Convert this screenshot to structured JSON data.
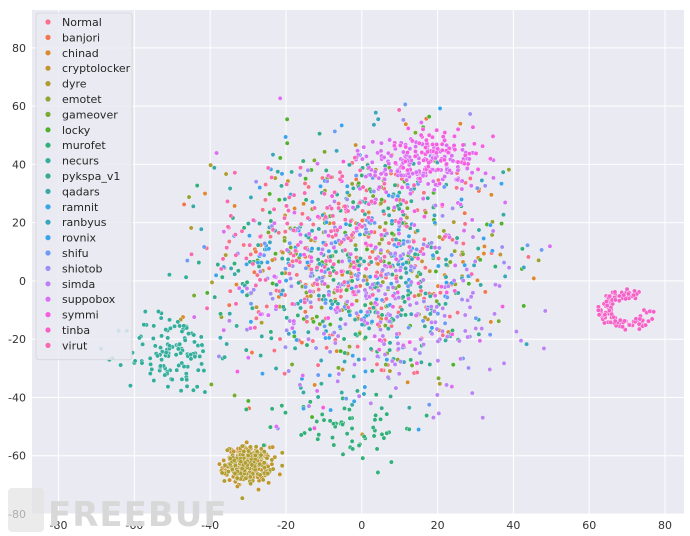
{
  "chart_data": {
    "type": "scatter",
    "title": "",
    "xlabel": "",
    "ylabel": "",
    "xlim": [
      -87,
      85
    ],
    "ylim": [
      -80,
      93
    ],
    "xticks": [
      -80,
      -60,
      -40,
      -20,
      0,
      20,
      40,
      60,
      80
    ],
    "yticks": [
      -80,
      -60,
      -40,
      -20,
      0,
      20,
      40,
      60,
      80
    ],
    "grid": true,
    "legend_position": "top-left",
    "series": [
      {
        "name": "Normal",
        "color": "#f77189",
        "clusters": [
          [
            0,
            5,
            38,
            42,
            180
          ]
        ]
      },
      {
        "name": "banjori",
        "color": "#f0774d",
        "clusters": [
          [
            0,
            5,
            38,
            42,
            40
          ]
        ]
      },
      {
        "name": "chinad",
        "color": "#dc8932",
        "clusters": [
          [
            0,
            5,
            38,
            42,
            40
          ]
        ]
      },
      {
        "name": "cryptolocker",
        "color": "#c39532",
        "clusters": [
          [
            -30,
            -63,
            6,
            6,
            220
          ],
          [
            0,
            5,
            38,
            42,
            30
          ]
        ]
      },
      {
        "name": "dyre",
        "color": "#ae9d31",
        "clusters": [
          [
            -30,
            -63,
            6,
            6,
            120
          ],
          [
            0,
            5,
            38,
            42,
            30
          ]
        ]
      },
      {
        "name": "emotet",
        "color": "#97a431",
        "clusters": [
          [
            0,
            5,
            38,
            42,
            50
          ]
        ]
      },
      {
        "name": "gameover",
        "color": "#77ab31",
        "clusters": [
          [
            0,
            5,
            38,
            42,
            50
          ]
        ]
      },
      {
        "name": "locky",
        "color": "#50b131",
        "clusters": [
          [
            0,
            5,
            38,
            42,
            60
          ]
        ]
      },
      {
        "name": "murofet",
        "color": "#33b07a",
        "clusters": [
          [
            -5,
            -50,
            20,
            12,
            60
          ],
          [
            0,
            5,
            38,
            42,
            60
          ]
        ]
      },
      {
        "name": "necurs",
        "color": "#35ad9c",
        "clusters": [
          [
            -50,
            -25,
            12,
            14,
            120
          ],
          [
            0,
            5,
            38,
            42,
            80
          ]
        ]
      },
      {
        "name": "pykspa_v1",
        "color": "#36ab8c",
        "clusters": [
          [
            0,
            5,
            38,
            42,
            60
          ]
        ]
      },
      {
        "name": "qadars",
        "color": "#38a9a5",
        "clusters": [
          [
            0,
            5,
            38,
            42,
            60
          ]
        ]
      },
      {
        "name": "ramnit",
        "color": "#3ba3ec",
        "clusters": [
          [
            0,
            5,
            38,
            42,
            60
          ]
        ]
      },
      {
        "name": "ranbyus",
        "color": "#3aa6bb",
        "clusters": [
          [
            0,
            5,
            38,
            42,
            60
          ]
        ]
      },
      {
        "name": "rovnix",
        "color": "#3ba3ec",
        "clusters": [
          [
            0,
            5,
            38,
            42,
            60
          ]
        ]
      },
      {
        "name": "shifu",
        "color": "#6e9bf4",
        "clusters": [
          [
            0,
            5,
            38,
            42,
            60
          ]
        ]
      },
      {
        "name": "shiotob",
        "color": "#9f8ef4",
        "clusters": [
          [
            0,
            5,
            38,
            42,
            80
          ]
        ]
      },
      {
        "name": "simda",
        "color": "#bb83f4",
        "clusters": [
          [
            10,
            -10,
            30,
            30,
            140
          ]
        ]
      },
      {
        "name": "suppobox",
        "color": "#d970f4",
        "clusters": [
          [
            15,
            40,
            16,
            10,
            160
          ],
          [
            0,
            5,
            38,
            42,
            80
          ]
        ]
      },
      {
        "name": "symmi",
        "color": "#f45fe2",
        "clusters": [
          [
            20,
            45,
            12,
            8,
            80
          ],
          [
            0,
            5,
            38,
            42,
            60
          ]
        ]
      },
      {
        "name": "tinba",
        "color": "#f462c7",
        "clusters": [
          [
            68,
            -10,
            4,
            4,
            120
          ]
        ]
      },
      {
        "name": "virut",
        "color": "#f56ab0",
        "clusters": [
          [
            -10,
            15,
            30,
            30,
            120
          ]
        ]
      }
    ]
  },
  "watermark": "FREEBUF"
}
